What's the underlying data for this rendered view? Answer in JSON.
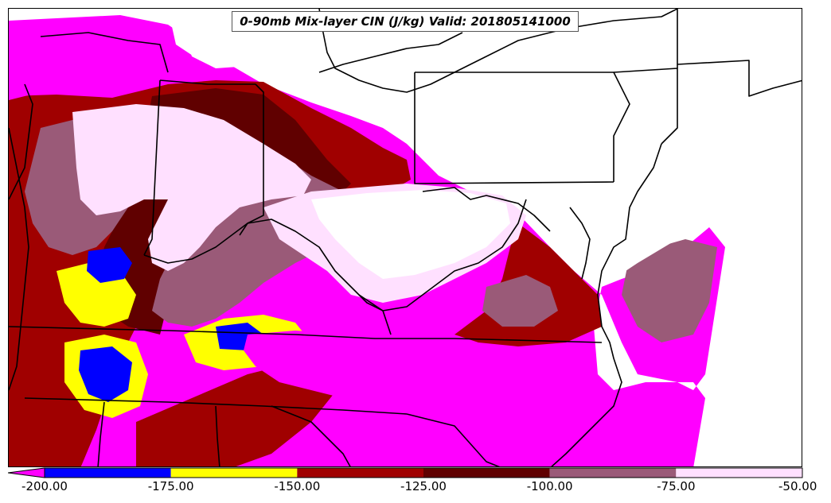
{
  "title": "0-90mb Mix-layer CIN (J/kg) Valid: 201805141000",
  "colorbar": {
    "min": -200,
    "max": -50,
    "extend": "min",
    "tick_labels": [
      "-200.00",
      "-175.00",
      "-150.00",
      "-125.00",
      "-100.00",
      "-75.00",
      "-50.00"
    ],
    "bins": [
      {
        "from": -200,
        "to": -175,
        "color": "#0000ff"
      },
      {
        "from": -175,
        "to": -150,
        "color": "#ffff00"
      },
      {
        "from": -150,
        "to": -125,
        "color": "#a00000"
      },
      {
        "from": -125,
        "to": -100,
        "color": "#600000"
      },
      {
        "from": -100,
        "to": -75,
        "color": "#9a5a78"
      },
      {
        "from": -75,
        "to": -50,
        "color": "#ffe0ff"
      }
    ],
    "below_min_color": "#ff00ff"
  },
  "colors": {
    "magenta": "#ff00ff",
    "blue": "#0000ff",
    "yellow": "#ffff00",
    "dark_red": "#a00000",
    "maroon": "#600000",
    "mauve": "#9a5a78",
    "pink": "#ffe0ff",
    "boundaries": "#000000"
  }
}
